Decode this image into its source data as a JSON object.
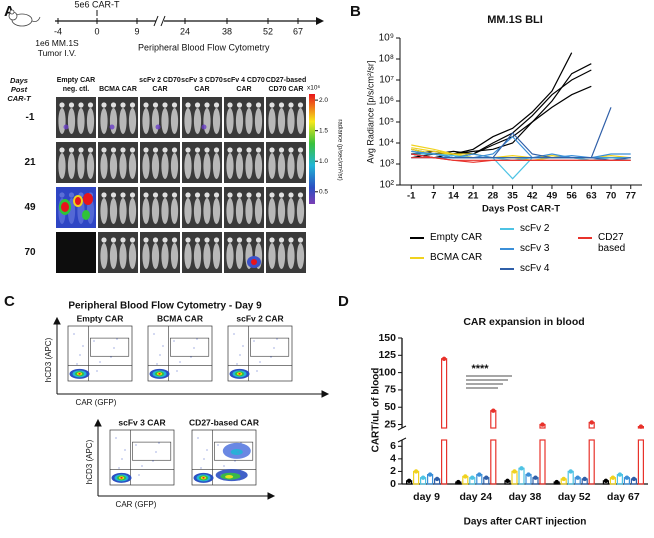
{
  "panel_labels": [
    "A",
    "B",
    "C",
    "D"
  ],
  "timeline": {
    "injection": "5e6 CAR-T",
    "ticks": [
      "-4",
      "0",
      "9",
      "24",
      "38",
      "52",
      "67"
    ],
    "tumor": "1e6 MM.1S Tumor I.V.",
    "sampling": "Peripheral Blood Flow Cytometry"
  },
  "imaging": {
    "row_header": "Days Post CAR-T",
    "columns": [
      "Empty CAR neg. ctl.",
      "BCMA CAR",
      "scFv 2 CD70 CAR",
      "scFv 3 CD70 CAR",
      "scFv 4 CD70 CAR",
      "CD27-based CD70 CAR"
    ],
    "rows": [
      "-1",
      "21",
      "49",
      "70"
    ],
    "colorbar": {
      "title": "x10⁶",
      "label": "radiance (p/sec/cm²/sr)",
      "lim": [
        0.3,
        2.1
      ],
      "ticks": [
        {
          "value": 2,
          "label": "2.0"
        },
        {
          "value": 1.5,
          "label": "1.5"
        },
        {
          "value": 1,
          "label": "1.0"
        },
        {
          "value": 0.5,
          "label": "0.5"
        }
      ]
    }
  },
  "flow": {
    "title": "Peripheral Blood Flow Cytometry - Day 9",
    "y_label": "hCD3 (APC)",
    "x_label": "CAR (GFP)",
    "plots": [
      "Empty CAR",
      "BCMA CAR",
      "scFv 2 CAR",
      "scFv 3 CAR",
      "CD27-based CAR"
    ]
  },
  "chart_data": [
    {
      "type": "line",
      "title": "MM.1S BLI",
      "y_label": "Avg Radiance [p/s/cm²/sr]",
      "x_label": "Days Post CAR-T",
      "x": [
        -1,
        7,
        14,
        21,
        28,
        35,
        42,
        49,
        56,
        63,
        70,
        77
      ],
      "xlim": [
        -5,
        81
      ],
      "xticks": [
        -1,
        7,
        14,
        21,
        28,
        35,
        42,
        49,
        56,
        63,
        70,
        77
      ],
      "log_y": true,
      "ylim": [
        100,
        1000000000
      ],
      "yticks": [
        {
          "value": 100,
          "label": "10²"
        },
        {
          "value": 1000,
          "label": "10³"
        },
        {
          "value": 10000,
          "label": "10⁴"
        },
        {
          "value": 100000,
          "label": "10⁵"
        },
        {
          "value": 1000000,
          "label": "10⁶"
        },
        {
          "value": 10000000,
          "label": "10⁷"
        },
        {
          "value": 100000000,
          "label": "10⁸"
        },
        {
          "value": 1000000000,
          "label": "10⁹"
        }
      ],
      "series": [
        {
          "name": "Empty CAR",
          "color": "#000000",
          "values": [
            [
              3000,
              4000,
              3000,
              5000,
              20000,
              50000,
              300000,
              3000000,
              200000000,
              null,
              null,
              null
            ],
            [
              2000,
              3000,
              4000,
              3000,
              8000,
              20000,
              100000,
              1000000,
              20000000,
              60000000,
              null,
              null
            ],
            [
              5000,
              3000,
              2000,
              3000,
              10000,
              30000,
              200000,
              2000000,
              10000000,
              30000000,
              null,
              null
            ],
            [
              3000,
              2000,
              3000,
              4000,
              5000,
              10000,
              100000,
              500000,
              2000000,
              5000000,
              null,
              null
            ]
          ]
        },
        {
          "name": "BCMA CAR",
          "color": "#f0d21e",
          "values": [
            [
              8000,
              5000,
              3000,
              2000,
              2000,
              2000,
              2000,
              2000,
              2000,
              2000,
              2000,
              2000
            ],
            [
              6000,
              4000,
              3000,
              3000,
              2000,
              2500,
              2000,
              2500,
              2000,
              2000,
              2500,
              2000
            ],
            [
              5000,
              3000,
              3000,
              2000,
              2000,
              2000,
              1500,
              2000,
              2000,
              1500,
              2000,
              2000
            ]
          ]
        },
        {
          "name": "scFv 2",
          "color": "#4ec3e4",
          "values": [
            [
              3000,
              3000,
              2500,
              2000,
              2000,
              200,
              2000,
              2000,
              2000,
              1500,
              2000,
              1500
            ],
            [
              4000,
              3000,
              2000,
              2000,
              2000,
              1500,
              2000,
              2000,
              2000,
              2000,
              2000,
              2000
            ]
          ]
        },
        {
          "name": "scFv 3",
          "color": "#3b8fd8",
          "values": [
            [
              4000,
              3000,
              2000,
              2000,
              3000,
              20000,
              2000,
              2000,
              2500,
              2000,
              3000,
              3000
            ],
            [
              3000,
              2000,
              2000,
              3000,
              2000,
              2000,
              2000,
              3000,
              2000,
              2000,
              2000,
              2000
            ]
          ]
        },
        {
          "name": "scFv 4",
          "color": "#2f5fa8",
          "values": [
            [
              3000,
              2000,
              2000,
              2000,
              2000,
              30000,
              3000,
              2000,
              2000,
              2000,
              500000,
              null
            ],
            [
              2000,
              2000,
              2000,
              2000,
              2000,
              2000,
              2000,
              2000,
              2000,
              2000,
              1500,
              2000
            ]
          ]
        },
        {
          "name": "CD27 based",
          "color": "#e8322b",
          "values": [
            [
              3000,
              2000,
              1500,
              1500,
              1500,
              1500,
              1500,
              1500,
              1500,
              1500,
              1500,
              1500
            ],
            [
              2000,
              2000,
              1500,
              1200,
              1500,
              1500,
              1500,
              1500,
              1500,
              1500,
              1500,
              1500
            ]
          ]
        }
      ]
    },
    {
      "type": "bar",
      "title": "CAR expansion in blood",
      "y_label": "CART/uL of blood",
      "x_label": "Days after CART injection",
      "categories": [
        "day 9",
        "day 24",
        "day 38",
        "day 52",
        "day 67"
      ],
      "ylim": [
        0,
        7
      ],
      "yticks": [
        0,
        2,
        4,
        6
      ],
      "ylim_upper": [
        20,
        150
      ],
      "yticks_upper": [
        25,
        50,
        75,
        100,
        125,
        150
      ],
      "annotation": "****",
      "series": [
        {
          "name": "Empty CAR",
          "color": "#000000",
          "values": [
            0.5,
            0.3,
            0.5,
            0.3,
            0.5
          ]
        },
        {
          "name": "BCMA CAR",
          "color": "#f0d21e",
          "values": [
            2,
            1.2,
            2,
            0.8,
            1
          ]
        },
        {
          "name": "scFv 2",
          "color": "#4ec3e4",
          "values": [
            1,
            1,
            2.5,
            2,
            1.5
          ]
        },
        {
          "name": "scFv 3",
          "color": "#3b8fd8",
          "values": [
            1.5,
            1.5,
            1.5,
            1,
            1
          ]
        },
        {
          "name": "scFv 4",
          "color": "#2f5fa8",
          "values": [
            0.8,
            1,
            1,
            0.8,
            0.8
          ]
        },
        {
          "name": "CD27 based",
          "color": "#e8322b",
          "values": [
            120,
            45,
            25,
            28,
            22
          ]
        }
      ]
    }
  ]
}
